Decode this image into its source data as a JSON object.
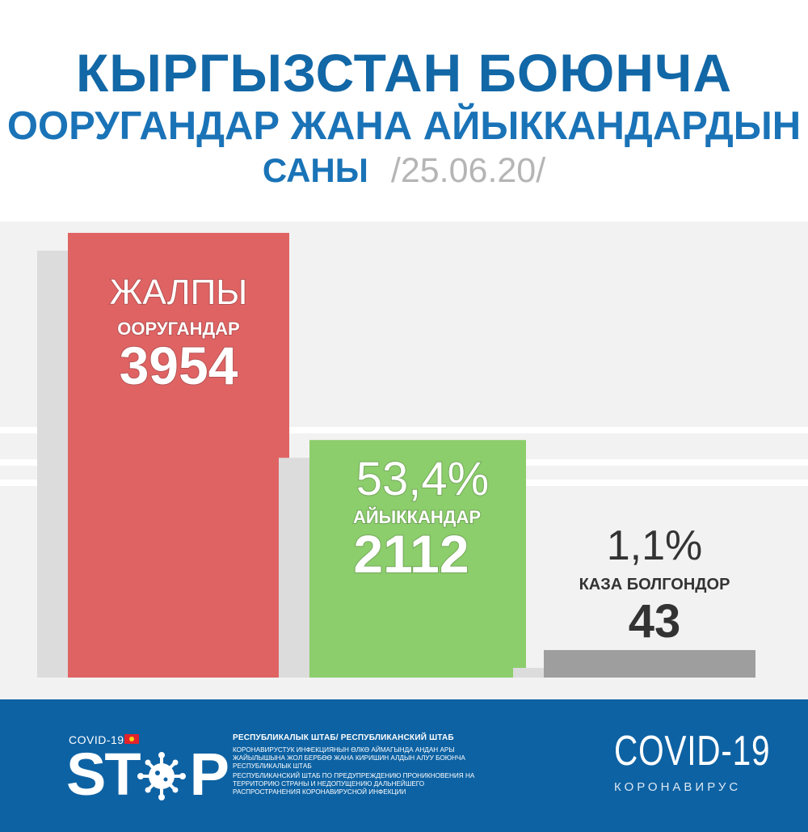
{
  "header": {
    "line1": "КЫРГЫЗСТАН БОЮНЧА",
    "line2": "ООРУГАНДАР ЖАНА АЙЫККАНДАРДЫН",
    "line3": "САНЫ",
    "date": "/25.06.20/"
  },
  "chart_data": {
    "type": "bar",
    "categories": [
      "ЖАЛПЫ ООРУГАНДАР",
      "АЙЫККАНДАР",
      "КАЗА БОЛГОНДОР"
    ],
    "values": [
      3954,
      2112,
      43
    ],
    "bars": [
      {
        "top_label": "ЖАЛПЫ",
        "label": "ООРУГАНДАР",
        "value": "3954",
        "percent": "",
        "color": "#e06363",
        "text_color": "#ffffff"
      },
      {
        "top_label": "",
        "label": "АЙЫККАНДАР",
        "value": "2112",
        "percent": "53,4%",
        "color": "#8ccd6c",
        "text_color": "#ffffff"
      },
      {
        "top_label": "",
        "label": "КАЗА БОЛГОНДОР",
        "value": "43",
        "percent": "1,1%",
        "color": "#9e9e9e",
        "text_color": "#333333"
      }
    ],
    "colors": {
      "background_panel": "#f2f2f2",
      "stripe": "#ffffff"
    }
  },
  "footer": {
    "covid_label": "COVID-19",
    "stop_text": "ST",
    "stop_text_end": "P",
    "hq_title": "РЕСПУБЛИКАЛЫК ШТАБ/ РЕСПУБЛИКАНСКИЙ ШТАБ",
    "hq_text_ky": "КОРОНАВИРУСТУК ИНФЕКЦИЯНЫН ӨЛКӨ АЙМАГЫНДА АНДАН АРЫ ЖАЙЫЛЫШЫНА ЖОЛ БЕРБӨӨ ЖАНА КИРИШИН АЛДЫН АЛУУ БОЮНЧА РЕСПУБЛИКАЛЫК ШТАБ",
    "hq_text_ru": "РЕСПУБЛИКАНСКИЙ ШТАБ ПО ПРЕДУПРЕЖДЕНИЮ ПРОНИКНОВЕНИЯ НА ТЕРРИТОРИЮ СТРАНЫ И НЕДОПУЩЕНИЮ ДАЛЬНЕЙШЕГО РАСПРОСТРАНЕНИЯ КОРОНАВИРУСНОЙ ИНФЕКЦИИ",
    "brand_name": "COVID-19",
    "brand_sub": "КОРОНАВИРУС",
    "bg_color": "#0d62a3"
  }
}
